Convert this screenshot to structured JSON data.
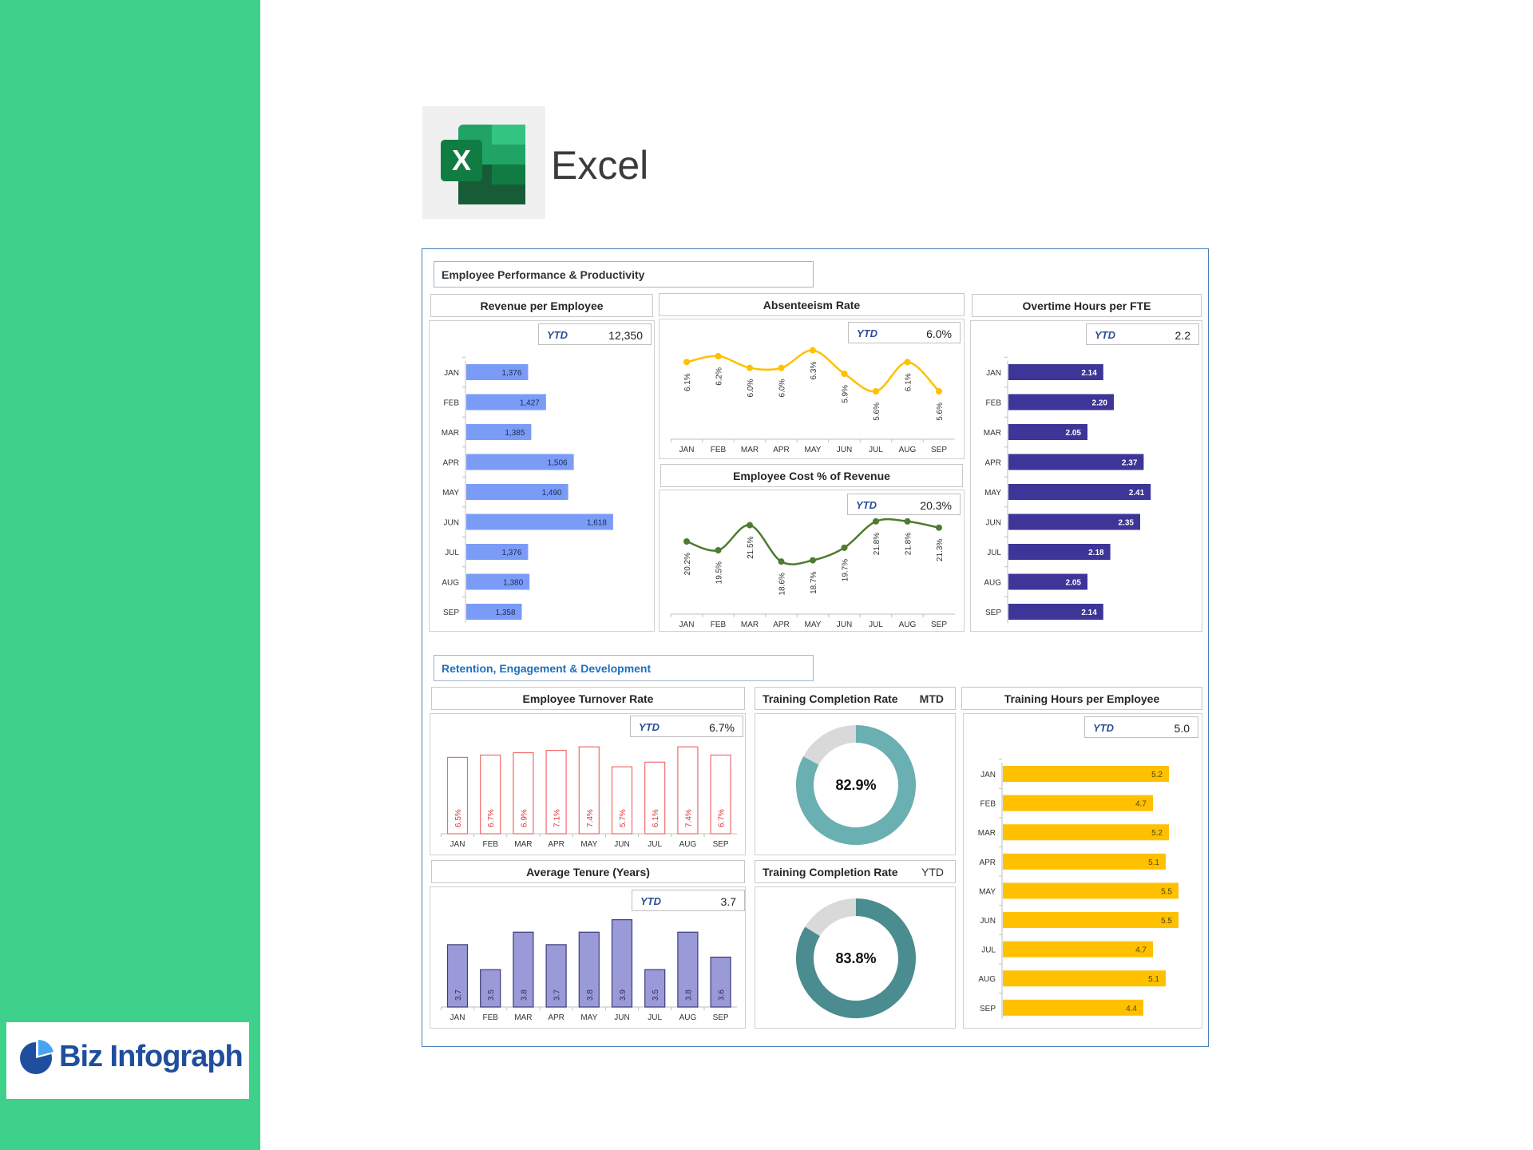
{
  "app": {
    "title": "Excel"
  },
  "brand": {
    "name": "Biz Infograph"
  },
  "colors": {
    "sidebar": "#3DD18C",
    "revenue_bar": "#7B9CF6",
    "absenteeism_line": "#FFC000",
    "cost_line": "#4E7B2E",
    "overtime_bar": "#3D3598",
    "turnover_outline": "#F26B6B",
    "tenure_bar": "#9A9AD8",
    "training_hours_bar": "#FFC000",
    "donut_mtd": "#6AAFB2",
    "donut_ytd": "#4A8C8F",
    "donut_rest": "#D9D9D9",
    "section2_text": "#1F6FBF"
  },
  "sections": {
    "performance": "Employee Performance & Productivity",
    "retention": "Retention, Engagement & Development"
  },
  "panels": {
    "revenue": {
      "title": "Revenue per Employee",
      "ytd_label": "YTD",
      "ytd_value": "12,350"
    },
    "absenteeism": {
      "title": "Absenteeism Rate",
      "ytd_label": "YTD",
      "ytd_value": "6.0%"
    },
    "cost": {
      "title": "Employee Cost % of Revenue",
      "ytd_label": "YTD",
      "ytd_value": "20.3%"
    },
    "overtime": {
      "title": "Overtime Hours per FTE",
      "ytd_label": "YTD",
      "ytd_value": "2.2"
    },
    "turnover": {
      "title": "Employee Turnover Rate",
      "ytd_label": "YTD",
      "ytd_value": "6.7%"
    },
    "tenure": {
      "title": "Average Tenure (Years)",
      "ytd_label": "YTD",
      "ytd_value": "3.7"
    },
    "training_mtd": {
      "title": "Training Completion Rate",
      "period": "MTD",
      "center": "82.9%"
    },
    "training_ytd": {
      "title": "Training Completion Rate",
      "period": "YTD",
      "center": "83.8%"
    },
    "training_hours": {
      "title": "Training Hours per Employee",
      "ytd_label": "YTD",
      "ytd_value": "5.0"
    }
  },
  "chart_data": [
    {
      "id": "revenue",
      "type": "bar",
      "orientation": "horizontal",
      "title": "Revenue per Employee",
      "categories": [
        "JAN",
        "FEB",
        "MAR",
        "APR",
        "MAY",
        "JUN",
        "JUL",
        "AUG",
        "SEP"
      ],
      "values": [
        1376,
        1427,
        1385,
        1506,
        1490,
        1618,
        1376,
        1380,
        1358
      ],
      "labels": [
        "1,376",
        "1,427",
        "1,385",
        "1,506",
        "1,490",
        "1,618",
        "1,376",
        "1,380",
        "1,358"
      ],
      "xlim": [
        1200,
        1700
      ]
    },
    {
      "id": "absenteeism",
      "type": "line",
      "title": "Absenteeism Rate",
      "categories": [
        "JAN",
        "FEB",
        "MAR",
        "APR",
        "MAY",
        "JUN",
        "JUL",
        "AUG",
        "SEP"
      ],
      "values": [
        6.1,
        6.2,
        6.0,
        6.0,
        6.3,
        5.9,
        5.6,
        6.1,
        5.6
      ],
      "labels": [
        "6.1%",
        "6.2%",
        "6.0%",
        "6.0%",
        "6.3%",
        "5.9%",
        "5.6%",
        "6.1%",
        "5.6%"
      ],
      "ylim": [
        5.3,
        6.5
      ]
    },
    {
      "id": "cost",
      "type": "line",
      "title": "Employee Cost % of Revenue",
      "categories": [
        "JAN",
        "FEB",
        "MAR",
        "APR",
        "MAY",
        "JUN",
        "JUL",
        "AUG",
        "SEP"
      ],
      "values": [
        20.2,
        19.5,
        21.5,
        18.6,
        18.7,
        19.7,
        21.8,
        21.8,
        21.3
      ],
      "labels": [
        "20.2%",
        "19.5%",
        "21.5%",
        "18.6%",
        "18.7%",
        "19.7%",
        "21.8%",
        "21.8%",
        "21.3%"
      ],
      "ylim": [
        16.0,
        23.0
      ]
    },
    {
      "id": "overtime",
      "type": "bar",
      "orientation": "horizontal",
      "title": "Overtime Hours per FTE",
      "categories": [
        "JAN",
        "FEB",
        "MAR",
        "APR",
        "MAY",
        "JUN",
        "JUL",
        "AUG",
        "SEP"
      ],
      "values": [
        2.14,
        2.2,
        2.05,
        2.37,
        2.41,
        2.35,
        2.18,
        2.05,
        2.14
      ],
      "labels": [
        "2.14",
        "2.20",
        "2.05",
        "2.37",
        "2.41",
        "2.35",
        "2.18",
        "2.05",
        "2.14"
      ],
      "xlim": [
        1.6,
        2.6
      ]
    },
    {
      "id": "turnover",
      "type": "bar",
      "orientation": "vertical",
      "title": "Employee Turnover Rate",
      "categories": [
        "JAN",
        "FEB",
        "MAR",
        "APR",
        "MAY",
        "JUN",
        "JUL",
        "AUG",
        "SEP"
      ],
      "values": [
        6.5,
        6.7,
        6.9,
        7.1,
        7.4,
        5.7,
        6.1,
        7.4,
        6.7
      ],
      "labels": [
        "6.5%",
        "6.7%",
        "6.9%",
        "7.1%",
        "7.4%",
        "5.7%",
        "6.1%",
        "7.4%",
        "6.7%"
      ],
      "ylim": [
        0,
        8.5
      ]
    },
    {
      "id": "tenure",
      "type": "bar",
      "orientation": "vertical",
      "title": "Average Tenure (Years)",
      "categories": [
        "JAN",
        "FEB",
        "MAR",
        "APR",
        "MAY",
        "JUN",
        "JUL",
        "AUG",
        "SEP"
      ],
      "values": [
        3.7,
        3.5,
        3.8,
        3.7,
        3.8,
        3.9,
        3.5,
        3.8,
        3.6
      ],
      "labels": [
        "3.7",
        "3.5",
        "3.8",
        "3.7",
        "3.8",
        "3.9",
        "3.5",
        "3.8",
        "3.6"
      ],
      "ylim": [
        3.2,
        4.0
      ]
    },
    {
      "id": "training_mtd",
      "type": "pie",
      "style": "donut",
      "title": "Training Completion Rate",
      "values": [
        82.9,
        17.1
      ]
    },
    {
      "id": "training_ytd",
      "type": "pie",
      "style": "donut",
      "title": "Training Completion Rate",
      "values": [
        83.8,
        16.2
      ]
    },
    {
      "id": "training_hours",
      "type": "bar",
      "orientation": "horizontal",
      "title": "Training Hours per Employee",
      "categories": [
        "JAN",
        "FEB",
        "MAR",
        "APR",
        "MAY",
        "JUN",
        "JUL",
        "AUG",
        "SEP"
      ],
      "values": [
        5.2,
        4.7,
        5.2,
        5.1,
        5.5,
        5.5,
        4.7,
        5.1,
        4.4
      ],
      "labels": [
        "5.2",
        "4.7",
        "5.2",
        "5.1",
        "5.5",
        "5.5",
        "4.7",
        "5.1",
        "4.4"
      ],
      "xlim": [
        0,
        6.0
      ]
    }
  ]
}
